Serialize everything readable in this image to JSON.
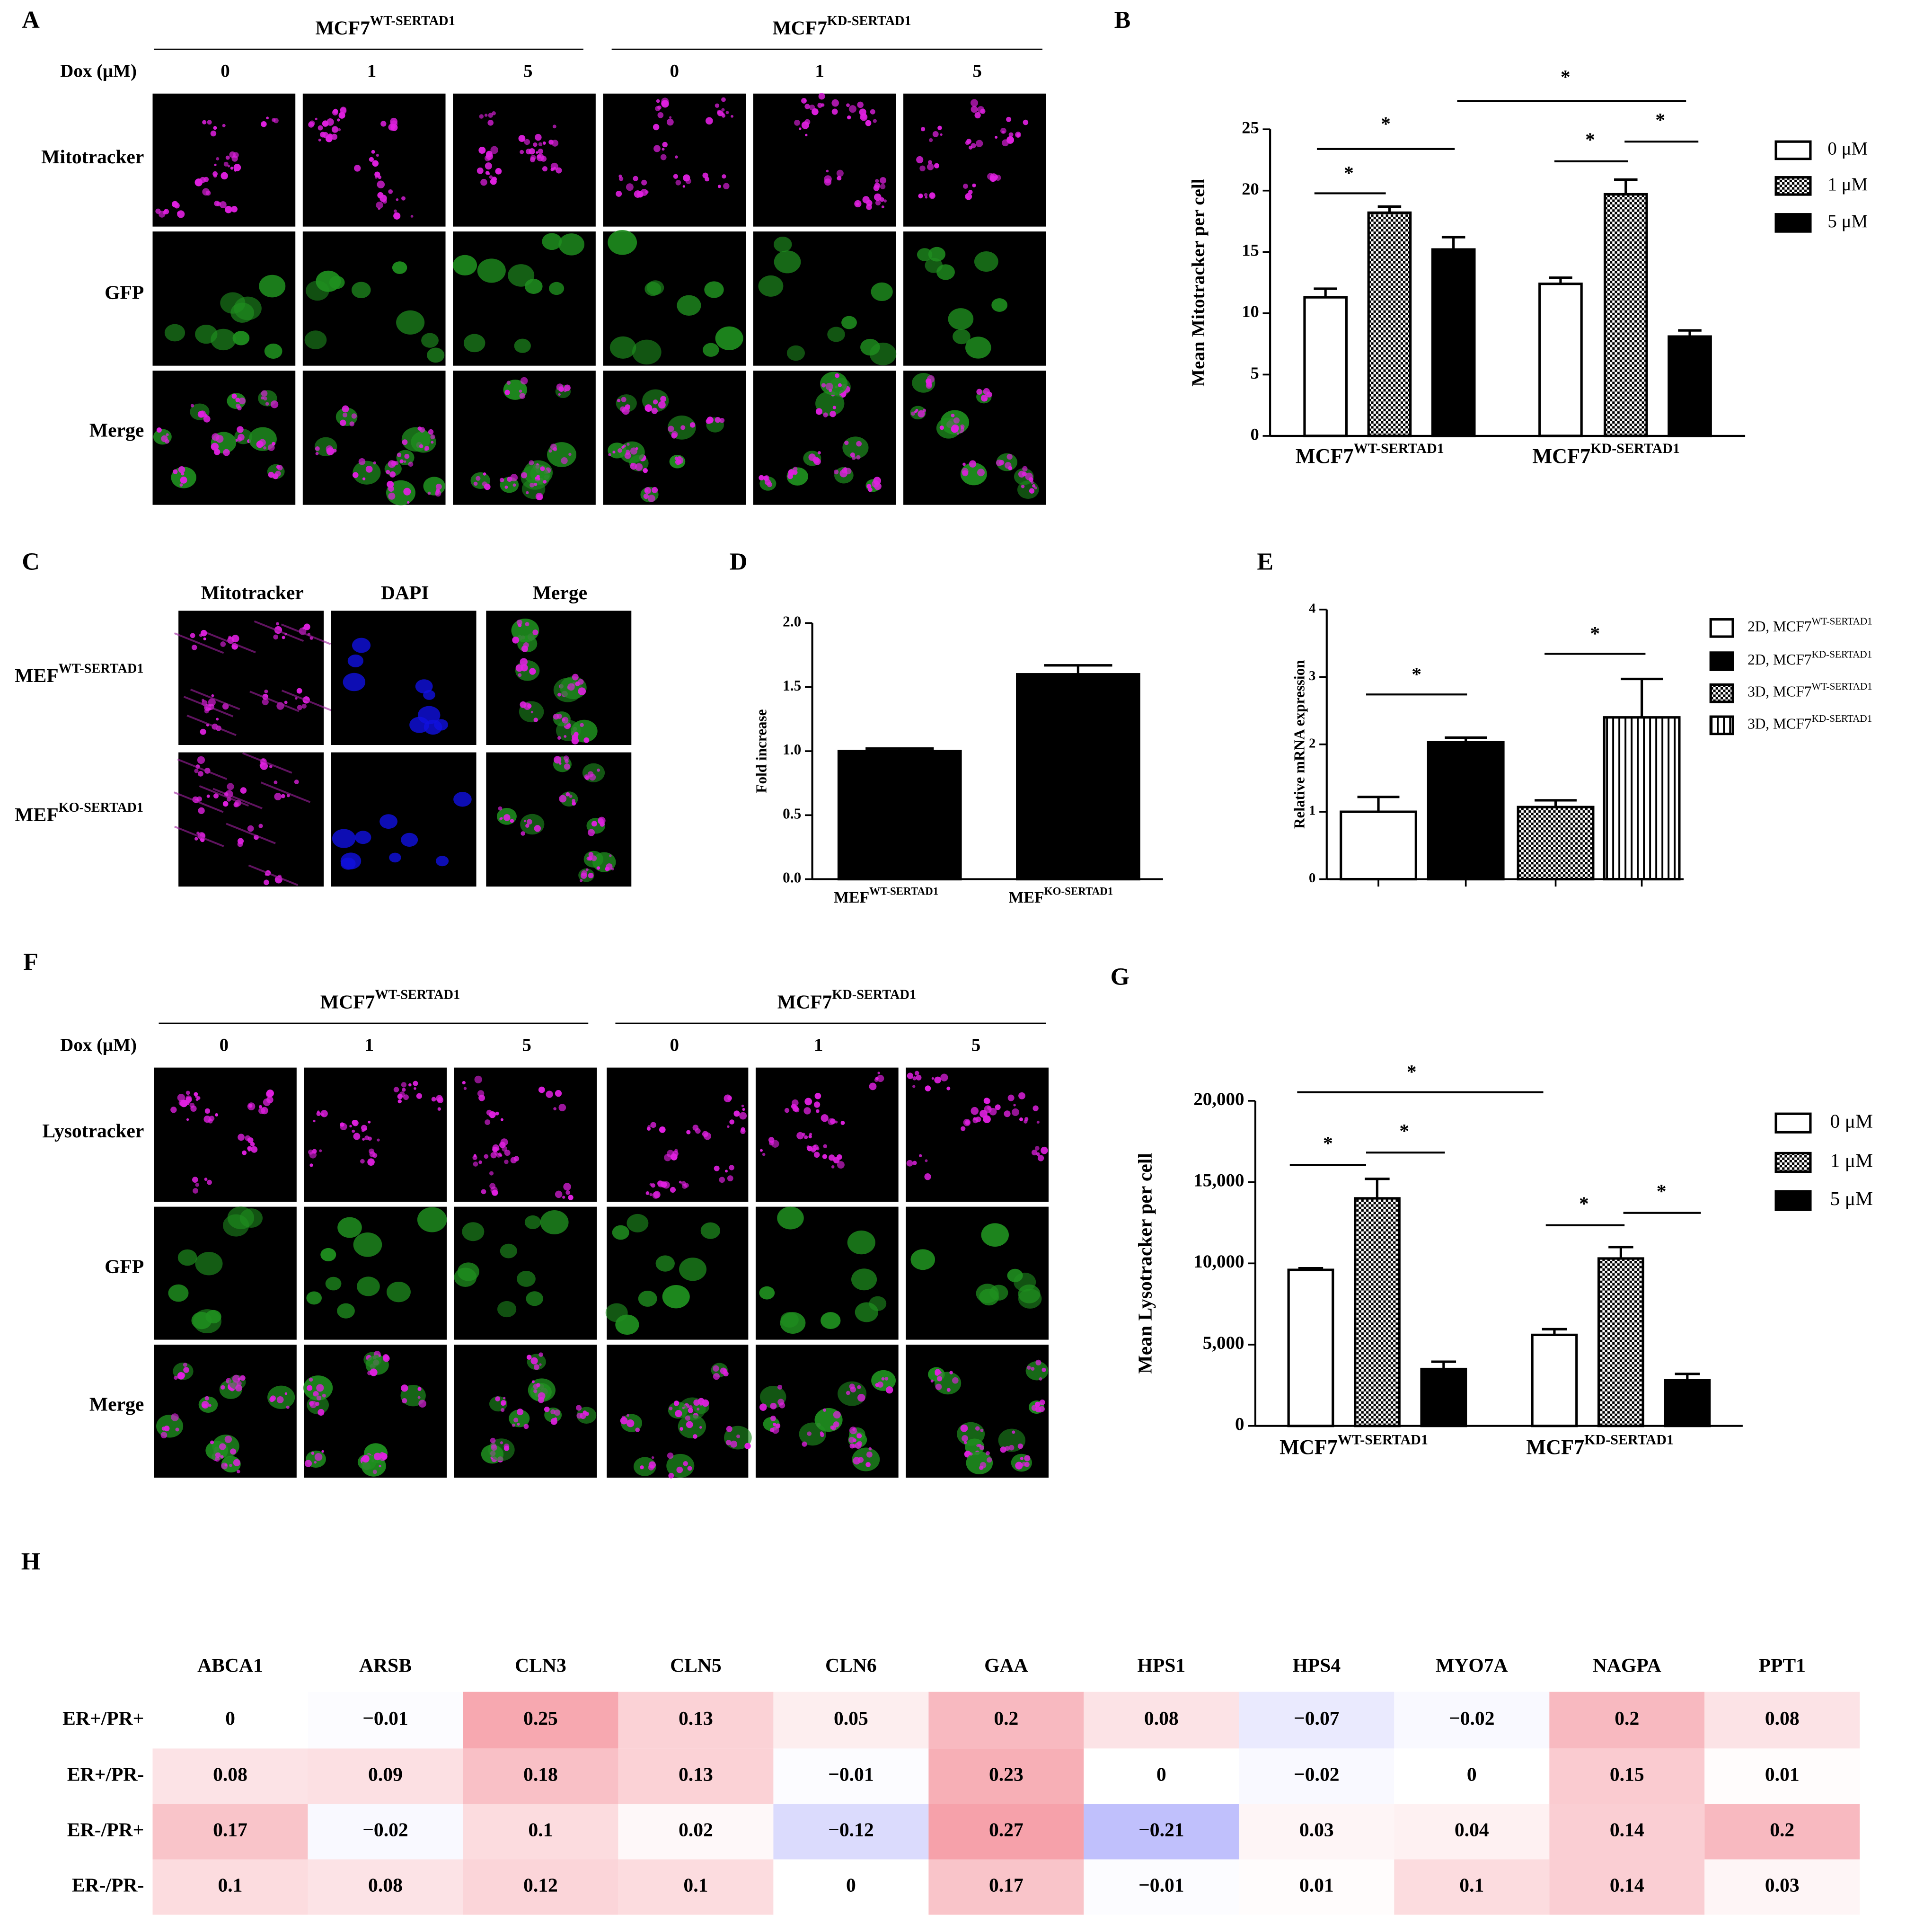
{
  "figure": {
    "letters": [
      "A",
      "B",
      "C",
      "D",
      "E",
      "F",
      "G",
      "H"
    ],
    "A": {
      "groups": [
        {
          "base": "MCF7",
          "sup": "WT-SERTAD1"
        },
        {
          "base": "MCF7",
          "sup": "KD-SERTAD1"
        }
      ],
      "dox_label": "Dox (μM)",
      "doses": [
        "0",
        "1",
        "5",
        "0",
        "1",
        "5"
      ],
      "rows": [
        "Mitotracker",
        "GFP",
        "Merge"
      ]
    },
    "C": {
      "columns": [
        "Mitotracker",
        "DAPI",
        "Merge"
      ],
      "rows": [
        {
          "base": "MEF",
          "sup": "WT-SERTAD1"
        },
        {
          "base": "MEF",
          "sup": "KO-SERTAD1"
        }
      ]
    },
    "F": {
      "groups": [
        {
          "base": "MCF7",
          "sup": "WT-SERTAD1"
        },
        {
          "base": "MCF7",
          "sup": "KD-SERTAD1"
        }
      ],
      "dox_label": "Dox (μM)",
      "doses": [
        "0",
        "1",
        "5",
        "0",
        "1",
        "5"
      ],
      "rows": [
        "Lysotracker",
        "GFP",
        "Merge"
      ]
    }
  },
  "chart_data": [
    {
      "type": "bar",
      "ylabel": "Mean Mitotracker per cell",
      "categories": [
        {
          "base": "MCF7",
          "sup": "WT-SERTAD1"
        },
        {
          "base": "MCF7",
          "sup": "KD-SERTAD1"
        }
      ],
      "series": [
        {
          "name": "0 μM",
          "color": "#ffffff",
          "pattern": "solid",
          "values": [
            11.3,
            12.4
          ],
          "errors": [
            0.7,
            0.5
          ]
        },
        {
          "name": "1 μM",
          "color": "#ffffff",
          "pattern": "checker",
          "values": [
            18.2,
            19.7
          ],
          "errors": [
            0.5,
            1.2
          ]
        },
        {
          "name": "5 μM",
          "color": "#000000",
          "pattern": "solid",
          "values": [
            15.2,
            8.1
          ],
          "errors": [
            1.0,
            0.5
          ]
        }
      ],
      "ylim": [
        0,
        25
      ],
      "yticks": [
        0,
        5,
        10,
        15,
        20,
        25
      ],
      "annotations": [
        "*",
        "*",
        "*",
        "*",
        "*"
      ],
      "legend": "right"
    },
    {
      "type": "bar",
      "ylabel": "Fold increase",
      "categories": [
        {
          "base": "MEF",
          "sup": "WT-SERTAD1"
        },
        {
          "base": "MEF",
          "sup": "KO-SERTAD1"
        }
      ],
      "values": [
        1.0,
        1.6
      ],
      "errors": [
        0.02,
        0.07
      ],
      "color": "#000000",
      "ylim": [
        0,
        2.0
      ],
      "yticks": [
        {
          "value": 0,
          "label": "0.0"
        },
        {
          "value": 0.5,
          "label": "0.5"
        },
        {
          "value": 1.0,
          "label": "1.0"
        },
        {
          "value": 1.5,
          "label": "1.5"
        },
        {
          "value": 2.0,
          "label": "2.0"
        }
      ]
    },
    {
      "type": "bar",
      "ylabel": "Relative mRNA expression",
      "categories": [
        null,
        null,
        null,
        null
      ],
      "values": [
        1.0,
        2.03,
        1.07,
        2.4
      ],
      "errors": [
        0.22,
        0.07,
        0.1,
        0.57
      ],
      "colors": [
        "#ffffff",
        "#000000",
        "#ffffff",
        "#ffffff"
      ],
      "patterns": [
        "solid",
        "solid",
        "checker",
        "vstripe"
      ],
      "legend_labels": [
        {
          "base": "2D, MCF7",
          "sup": "WT-SERTAD1"
        },
        {
          "base": "2D, MCF7",
          "sup": "KD-SERTAD1"
        },
        {
          "base": "3D, MCF7",
          "sup": "WT-SERTAD1"
        },
        {
          "base": "3D, MCF7",
          "sup": "KD-SERTAD1"
        }
      ],
      "ylim": [
        0,
        4
      ],
      "yticks": [
        0,
        1,
        2,
        3,
        4
      ],
      "annotations": [
        "*",
        "*"
      ],
      "legend": "right"
    },
    {
      "type": "bar",
      "ylabel": "Mean Lysotracker per cell",
      "categories": [
        {
          "base": "MCF7",
          "sup": "WT-SERTAD1"
        },
        {
          "base": "MCF7",
          "sup": "KD-SERTAD1"
        }
      ],
      "series": [
        {
          "name": "0 μM",
          "color": "#ffffff",
          "pattern": "solid",
          "values": [
            9600,
            5600
          ],
          "errors": [
            100,
            350
          ]
        },
        {
          "name": "1 μM",
          "color": "#ffffff",
          "pattern": "checker",
          "values": [
            14000,
            10300
          ],
          "errors": [
            1200,
            700
          ]
        },
        {
          "name": "5 μM",
          "color": "#000000",
          "pattern": "solid",
          "values": [
            3500,
            2800
          ],
          "errors": [
            450,
            400
          ]
        }
      ],
      "ylim": [
        0,
        20000
      ],
      "yticks": [
        0,
        {
          "value": 5000,
          "label": "5,000"
        },
        {
          "value": 10000,
          "label": "10,000"
        },
        {
          "value": 15000,
          "label": "15,000"
        },
        {
          "value": 20000,
          "label": "20,000"
        }
      ],
      "annotations": [
        "*",
        "*",
        "*",
        "*",
        "*"
      ],
      "legend": "right"
    },
    {
      "type": "heatmap",
      "x": [
        "ABCA1",
        "ARSB",
        "CLN3",
        "CLN5",
        "CLN6",
        "GAA",
        "HPS1",
        "HPS4",
        "MYO7A",
        "NAGPA",
        "PPT1"
      ],
      "y": [
        "ER+/PR+",
        "ER+/PR-",
        "ER-/PR+",
        "ER-/PR-"
      ],
      "values": [
        [
          0,
          -0.01,
          0.25,
          0.13,
          0.05,
          0.2,
          0.08,
          -0.07,
          -0.02,
          0.2,
          0.08
        ],
        [
          0.08,
          0.09,
          0.18,
          0.13,
          -0.01,
          0.23,
          0,
          -0.02,
          0,
          0.15,
          0.01
        ],
        [
          0.17,
          -0.02,
          0.1,
          0.02,
          -0.12,
          0.27,
          -0.21,
          0.03,
          0.04,
          0.14,
          0.2
        ],
        [
          0.1,
          0.08,
          0.12,
          0.1,
          0,
          0.17,
          -0.01,
          0.01,
          0.1,
          0.14,
          0.03
        ]
      ],
      "value_labels": [
        [
          "0",
          "−0.01",
          "0.25",
          "0.13",
          "0.05",
          "0.2",
          "0.08",
          "−0.07",
          "−0.02",
          "0.2",
          "0.08"
        ],
        [
          "0.08",
          "0.09",
          "0.18",
          "0.13",
          "−0.01",
          "0.23",
          "0",
          "−0.02",
          "0",
          "0.15",
          "0.01"
        ],
        [
          "0.17",
          "−0.02",
          "0.1",
          "0.02",
          "−0.12",
          "0.27",
          "−0.21",
          "0.03",
          "0.04",
          "0.14",
          "0.2"
        ],
        [
          "0.1",
          "0.08",
          "0.12",
          "0.1",
          "0",
          "0.17",
          "−0.01",
          "0.01",
          "0.1",
          "0.14",
          "0.03"
        ]
      ]
    }
  ]
}
